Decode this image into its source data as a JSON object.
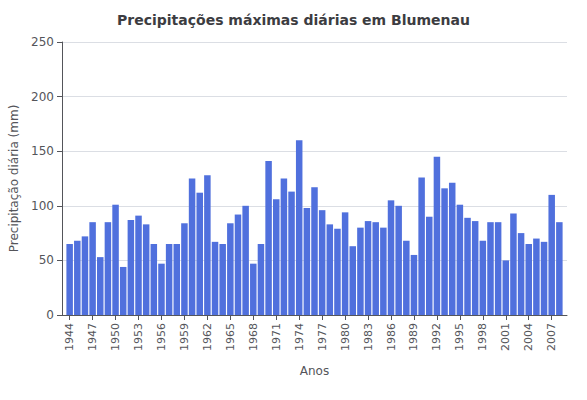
{
  "chart_data": {
    "type": "bar",
    "title": "Precipitações máximas diárias em Blumenau",
    "xlabel": "Anos",
    "ylabel": "Precipitação diária (mm)",
    "x": [
      1944,
      1945,
      1946,
      1947,
      1948,
      1949,
      1950,
      1951,
      1952,
      1953,
      1954,
      1955,
      1956,
      1957,
      1958,
      1959,
      1960,
      1961,
      1962,
      1963,
      1964,
      1965,
      1966,
      1967,
      1968,
      1969,
      1970,
      1971,
      1972,
      1973,
      1974,
      1975,
      1976,
      1977,
      1978,
      1979,
      1980,
      1981,
      1982,
      1983,
      1984,
      1985,
      1986,
      1987,
      1988,
      1989,
      1990,
      1991,
      1992,
      1993,
      1994,
      1995,
      1996,
      1997,
      1998,
      1999,
      2000,
      2001,
      2002,
      2003,
      2004,
      2005,
      2006,
      2007,
      2008
    ],
    "values": [
      65,
      68,
      72,
      85,
      53,
      85,
      101,
      44,
      87,
      91,
      83,
      65,
      47,
      65,
      65,
      84,
      125,
      112,
      128,
      67,
      65,
      84,
      92,
      100,
      47,
      65,
      141,
      106,
      125,
      113,
      160,
      98,
      117,
      96,
      83,
      79,
      94,
      63,
      80,
      86,
      85,
      80,
      105,
      100,
      68,
      55,
      126,
      90,
      145,
      116,
      121,
      101,
      89,
      86,
      68,
      85,
      85,
      50,
      93,
      75,
      65,
      70,
      67,
      110,
      85
    ],
    "xlim": [
      1943,
      2009
    ],
    "xticks": [
      1944,
      1947,
      1950,
      1953,
      1956,
      1959,
      1962,
      1965,
      1968,
      1971,
      1974,
      1977,
      1980,
      1983,
      1986,
      1989,
      1992,
      1995,
      1998,
      2001,
      2004,
      2007
    ],
    "ylim": [
      0,
      250
    ],
    "yticks": [
      0,
      50,
      100,
      150,
      200,
      250
    ],
    "grid": true
  }
}
